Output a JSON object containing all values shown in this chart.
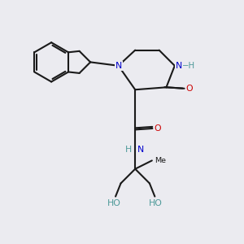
{
  "bg_color": "#ebebf0",
  "bond_color": "#1a1a1a",
  "bond_width": 1.5,
  "N_color": "#0000cc",
  "O_color": "#cc0000",
  "NH_color": "#4d9999",
  "font_size": 7.8,
  "xlim": [
    0,
    10
  ],
  "ylim": [
    0,
    10
  ]
}
